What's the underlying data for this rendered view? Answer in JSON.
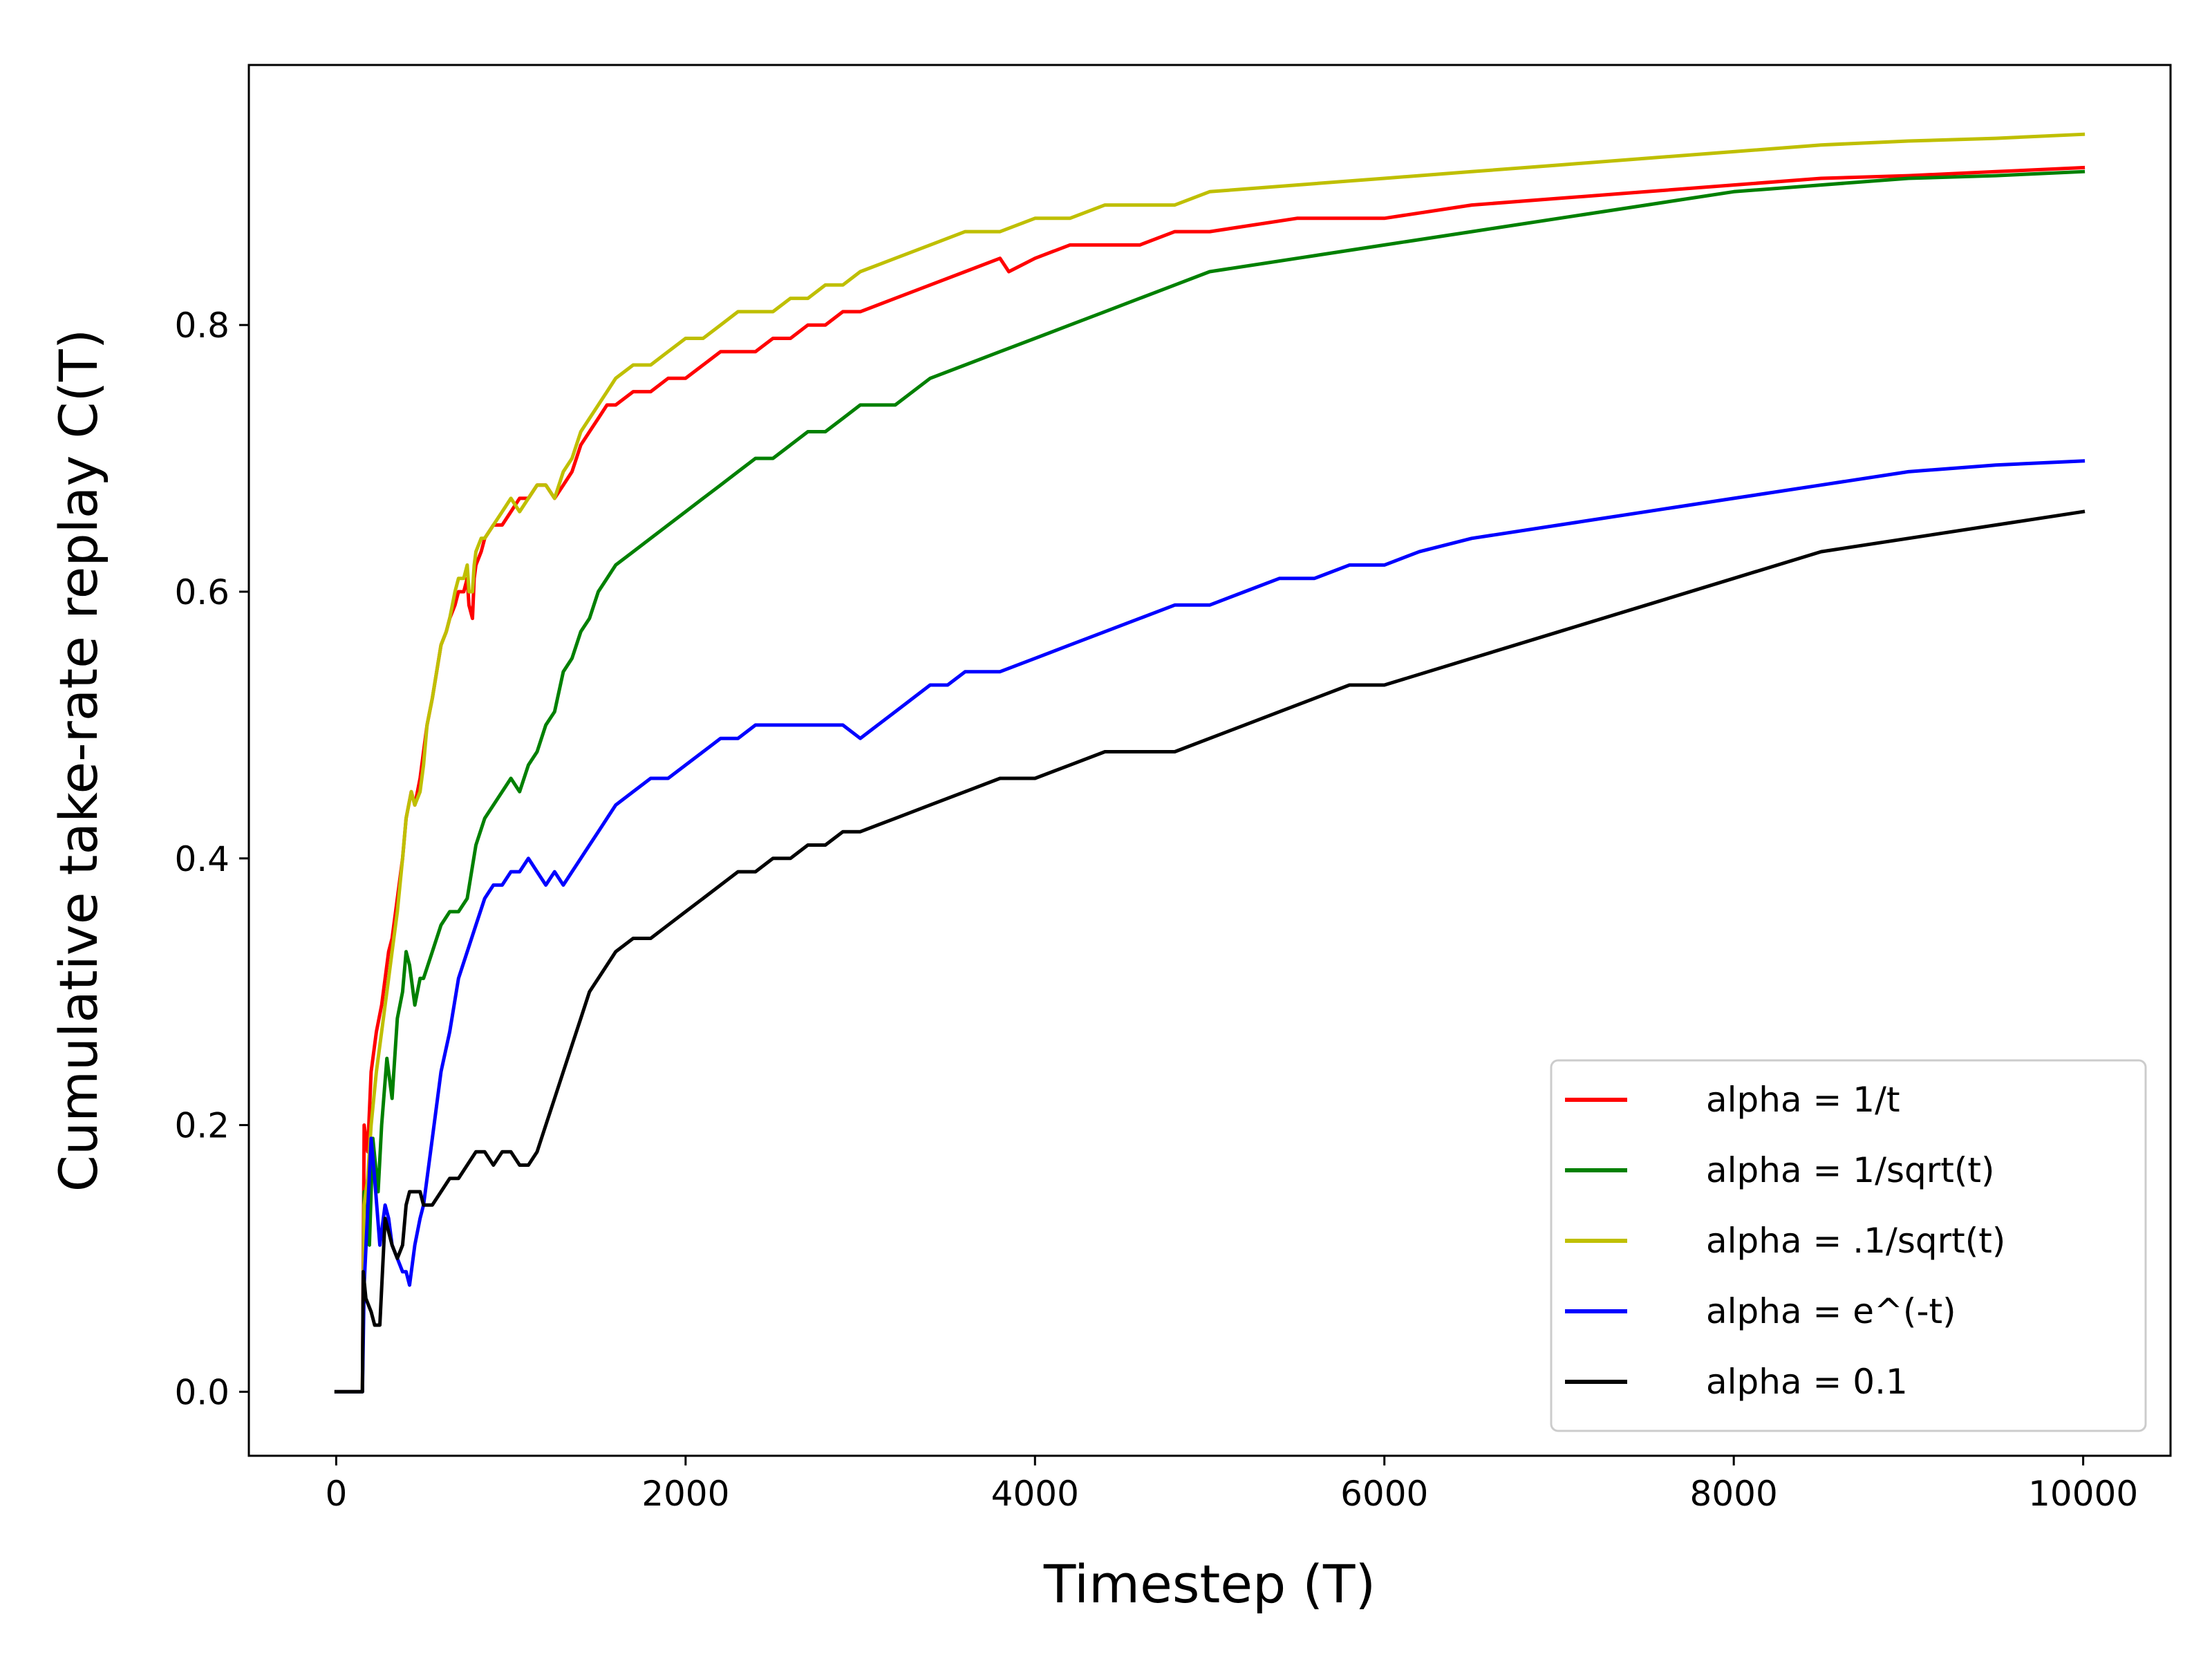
{
  "chart_data": {
    "type": "line",
    "title": "",
    "xlabel": "Timestep (T)",
    "ylabel": "Cumulative take-rate replay C(T)",
    "xlim": [
      -500,
      10500
    ],
    "ylim": [
      -0.048,
      0.995
    ],
    "xticks": [
      0,
      2000,
      4000,
      6000,
      8000,
      10000
    ],
    "xtick_labels": [
      "0",
      "2000",
      "4000",
      "6000",
      "8000",
      "10000"
    ],
    "yticks": [
      0.0,
      0.2,
      0.4,
      0.6,
      0.8
    ],
    "ytick_labels": [
      "0.0",
      "0.2",
      "0.4",
      "0.6",
      "0.8"
    ],
    "grid": false,
    "legend_position": "lower-right",
    "series": [
      {
        "name": "alpha = 1/t",
        "color": "#ff0000",
        "x": [
          0,
          150,
          160,
          180,
          200,
          230,
          260,
          300,
          320,
          350,
          380,
          400,
          430,
          450,
          480,
          500,
          520,
          550,
          600,
          630,
          650,
          680,
          700,
          730,
          750,
          760,
          780,
          790,
          800,
          830,
          850,
          900,
          950,
          1000,
          1050,
          1100,
          1150,
          1200,
          1250,
          1300,
          1350,
          1400,
          1450,
          1500,
          1550,
          1600,
          1700,
          1800,
          1900,
          2000,
          2100,
          2200,
          2300,
          2400,
          2500,
          2600,
          2700,
          2800,
          2900,
          3000,
          3200,
          3400,
          3600,
          3800,
          3850,
          4000,
          4200,
          4400,
          4600,
          4800,
          5000,
          5500,
          6000,
          6500,
          7000,
          7500,
          8000,
          8500,
          9000,
          9500,
          10000
        ],
        "y": [
          0.0,
          0.0,
          0.2,
          0.18,
          0.24,
          0.27,
          0.29,
          0.33,
          0.34,
          0.37,
          0.4,
          0.43,
          0.45,
          0.44,
          0.46,
          0.48,
          0.5,
          0.52,
          0.56,
          0.57,
          0.58,
          0.59,
          0.6,
          0.6,
          0.61,
          0.59,
          0.58,
          0.61,
          0.62,
          0.63,
          0.64,
          0.65,
          0.65,
          0.66,
          0.67,
          0.67,
          0.68,
          0.68,
          0.67,
          0.68,
          0.69,
          0.71,
          0.72,
          0.73,
          0.74,
          0.74,
          0.75,
          0.75,
          0.76,
          0.76,
          0.77,
          0.78,
          0.78,
          0.78,
          0.79,
          0.79,
          0.8,
          0.8,
          0.81,
          0.81,
          0.82,
          0.83,
          0.84,
          0.85,
          0.84,
          0.85,
          0.86,
          0.86,
          0.86,
          0.87,
          0.87,
          0.88,
          0.88,
          0.89,
          0.895,
          0.9,
          0.905,
          0.91,
          0.912,
          0.915,
          0.918
        ]
      },
      {
        "name": "alpha = 1/sqrt(t)",
        "color": "#008000",
        "x": [
          0,
          150,
          160,
          190,
          210,
          240,
          260,
          290,
          320,
          350,
          380,
          400,
          420,
          450,
          480,
          500,
          550,
          600,
          650,
          700,
          750,
          800,
          850,
          900,
          950,
          1000,
          1050,
          1100,
          1150,
          1200,
          1250,
          1300,
          1350,
          1400,
          1450,
          1500,
          1550,
          1600,
          1700,
          1800,
          1900,
          2000,
          2100,
          2200,
          2300,
          2400,
          2500,
          2600,
          2700,
          2800,
          2900,
          3000,
          3200,
          3400,
          3600,
          3800,
          4000,
          4200,
          4400,
          4600,
          4800,
          5000,
          5500,
          6000,
          6500,
          7000,
          7500,
          8000,
          8500,
          9000,
          9500,
          10000
        ],
        "y": [
          0.0,
          0.0,
          0.15,
          0.11,
          0.19,
          0.15,
          0.2,
          0.25,
          0.22,
          0.28,
          0.3,
          0.33,
          0.32,
          0.29,
          0.31,
          0.31,
          0.33,
          0.35,
          0.36,
          0.36,
          0.37,
          0.41,
          0.43,
          0.44,
          0.45,
          0.46,
          0.45,
          0.47,
          0.48,
          0.5,
          0.51,
          0.54,
          0.55,
          0.57,
          0.58,
          0.6,
          0.61,
          0.62,
          0.63,
          0.64,
          0.65,
          0.66,
          0.67,
          0.68,
          0.69,
          0.7,
          0.7,
          0.71,
          0.72,
          0.72,
          0.73,
          0.74,
          0.74,
          0.76,
          0.77,
          0.78,
          0.79,
          0.8,
          0.81,
          0.82,
          0.83,
          0.84,
          0.85,
          0.86,
          0.87,
          0.88,
          0.89,
          0.9,
          0.905,
          0.91,
          0.912,
          0.915
        ]
      },
      {
        "name": "alpha = .1/sqrt(t)",
        "color": "#bfbf00",
        "x": [
          0,
          150,
          160,
          180,
          200,
          230,
          260,
          300,
          320,
          350,
          380,
          400,
          430,
          450,
          480,
          500,
          520,
          550,
          600,
          630,
          650,
          680,
          700,
          730,
          750,
          760,
          780,
          790,
          800,
          830,
          850,
          900,
          950,
          1000,
          1050,
          1100,
          1150,
          1200,
          1250,
          1300,
          1350,
          1400,
          1450,
          1500,
          1550,
          1600,
          1700,
          1800,
          1900,
          2000,
          2100,
          2200,
          2300,
          2400,
          2500,
          2600,
          2700,
          2800,
          2900,
          3000,
          3200,
          3400,
          3600,
          3800,
          4000,
          4200,
          4400,
          4600,
          4800,
          5000,
          5500,
          6000,
          6500,
          7000,
          7500,
          8000,
          8500,
          9000,
          9500,
          10000
        ],
        "y": [
          0.0,
          0.0,
          0.14,
          0.16,
          0.2,
          0.24,
          0.27,
          0.31,
          0.33,
          0.36,
          0.4,
          0.43,
          0.45,
          0.44,
          0.45,
          0.47,
          0.5,
          0.52,
          0.56,
          0.57,
          0.58,
          0.6,
          0.61,
          0.61,
          0.62,
          0.6,
          0.6,
          0.62,
          0.63,
          0.64,
          0.64,
          0.65,
          0.66,
          0.67,
          0.66,
          0.67,
          0.68,
          0.68,
          0.67,
          0.69,
          0.7,
          0.72,
          0.73,
          0.74,
          0.75,
          0.76,
          0.77,
          0.77,
          0.78,
          0.79,
          0.79,
          0.8,
          0.81,
          0.81,
          0.81,
          0.82,
          0.82,
          0.83,
          0.83,
          0.84,
          0.85,
          0.86,
          0.87,
          0.87,
          0.88,
          0.88,
          0.89,
          0.89,
          0.89,
          0.9,
          0.905,
          0.91,
          0.915,
          0.92,
          0.925,
          0.93,
          0.935,
          0.938,
          0.94,
          0.943
        ]
      },
      {
        "name": "alpha = e^(-t)",
        "color": "#0000ff",
        "x": [
          0,
          150,
          160,
          200,
          220,
          250,
          280,
          300,
          320,
          350,
          380,
          400,
          420,
          450,
          480,
          500,
          550,
          600,
          650,
          700,
          750,
          800,
          850,
          900,
          950,
          1000,
          1050,
          1100,
          1150,
          1200,
          1250,
          1300,
          1350,
          1400,
          1450,
          1500,
          1550,
          1600,
          1700,
          1800,
          1900,
          2000,
          2100,
          2200,
          2300,
          2400,
          2500,
          2600,
          2700,
          2800,
          2900,
          3000,
          3100,
          3200,
          3300,
          3400,
          3500,
          3600,
          3700,
          3800,
          4000,
          4200,
          4400,
          4600,
          4800,
          5000,
          5200,
          5400,
          5600,
          5800,
          6000,
          6200,
          6500,
          7000,
          7500,
          8000,
          8500,
          9000,
          9500,
          10000
        ],
        "y": [
          0.0,
          0.0,
          0.08,
          0.19,
          0.16,
          0.11,
          0.14,
          0.13,
          0.11,
          0.1,
          0.09,
          0.09,
          0.08,
          0.11,
          0.13,
          0.14,
          0.19,
          0.24,
          0.27,
          0.31,
          0.33,
          0.35,
          0.37,
          0.38,
          0.38,
          0.39,
          0.39,
          0.4,
          0.39,
          0.38,
          0.39,
          0.38,
          0.39,
          0.4,
          0.41,
          0.42,
          0.43,
          0.44,
          0.45,
          0.46,
          0.46,
          0.47,
          0.48,
          0.49,
          0.49,
          0.5,
          0.5,
          0.5,
          0.5,
          0.5,
          0.5,
          0.49,
          0.5,
          0.51,
          0.52,
          0.53,
          0.53,
          0.54,
          0.54,
          0.54,
          0.55,
          0.56,
          0.57,
          0.58,
          0.59,
          0.59,
          0.6,
          0.61,
          0.61,
          0.62,
          0.62,
          0.63,
          0.64,
          0.65,
          0.66,
          0.67,
          0.68,
          0.69,
          0.695,
          0.698
        ]
      },
      {
        "name": "alpha = 0.1",
        "color": "#000000",
        "x": [
          0,
          150,
          155,
          170,
          200,
          220,
          250,
          280,
          300,
          320,
          350,
          380,
          400,
          420,
          450,
          480,
          500,
          550,
          600,
          650,
          700,
          750,
          800,
          850,
          900,
          950,
          1000,
          1050,
          1100,
          1150,
          1200,
          1250,
          1300,
          1350,
          1400,
          1450,
          1500,
          1550,
          1600,
          1700,
          1800,
          1900,
          2000,
          2100,
          2200,
          2300,
          2400,
          2500,
          2600,
          2700,
          2800,
          2900,
          3000,
          3200,
          3400,
          3600,
          3800,
          4000,
          4200,
          4400,
          4600,
          4800,
          5000,
          5200,
          5400,
          5600,
          5800,
          6000,
          6500,
          7000,
          7500,
          8000,
          8500,
          9000,
          9500,
          10000
        ],
        "y": [
          0.0,
          0.0,
          0.09,
          0.07,
          0.06,
          0.05,
          0.05,
          0.13,
          0.12,
          0.11,
          0.1,
          0.11,
          0.14,
          0.15,
          0.15,
          0.15,
          0.14,
          0.14,
          0.15,
          0.16,
          0.16,
          0.17,
          0.18,
          0.18,
          0.17,
          0.18,
          0.18,
          0.17,
          0.17,
          0.18,
          0.2,
          0.22,
          0.24,
          0.26,
          0.28,
          0.3,
          0.31,
          0.32,
          0.33,
          0.34,
          0.34,
          0.35,
          0.36,
          0.37,
          0.38,
          0.39,
          0.39,
          0.4,
          0.4,
          0.41,
          0.41,
          0.42,
          0.42,
          0.43,
          0.44,
          0.45,
          0.46,
          0.46,
          0.47,
          0.48,
          0.48,
          0.48,
          0.49,
          0.5,
          0.51,
          0.52,
          0.53,
          0.53,
          0.55,
          0.57,
          0.59,
          0.61,
          0.63,
          0.64,
          0.65,
          0.66
        ]
      }
    ]
  }
}
